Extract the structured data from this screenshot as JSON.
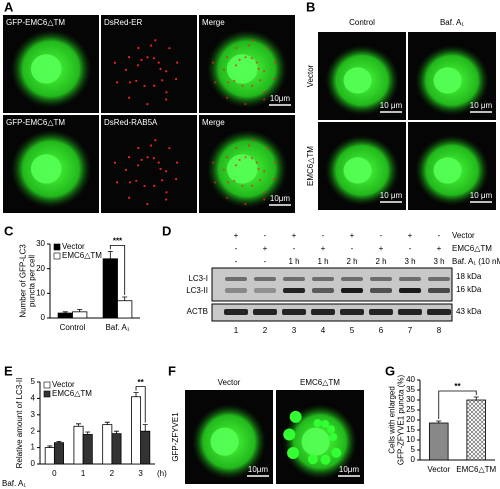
{
  "panels": {
    "A": {
      "label": "A",
      "rows": [
        [
          "GFP-EMC6△TM",
          "DsRed-ER",
          "Merge"
        ],
        [
          "GFP-EMC6△TM",
          "DsRed-RAB5A",
          "Merge"
        ]
      ],
      "scale_bars": [
        "10μm",
        "10μm"
      ]
    },
    "B": {
      "label": "B",
      "columns": [
        "Control",
        "Baf. A₁"
      ],
      "rows": [
        "Vector",
        "EMC6△TM"
      ],
      "scale_bars": [
        "10 μm",
        "10 μm",
        "10 μm",
        "10 μm"
      ]
    },
    "D": {
      "label": "D",
      "conditions": [
        {
          "name": "Vector",
          "marks": [
            "+",
            "-",
            "+",
            "-",
            "+",
            "-",
            "+",
            "-"
          ]
        },
        {
          "name": "EMC6△TM",
          "marks": [
            "-",
            "+",
            "-",
            "+",
            "-",
            "+",
            "-",
            "+"
          ]
        },
        {
          "name": "Baf. A₁ (10 nM)",
          "marks": [
            "-",
            "-",
            "1 h",
            "1 h",
            "2 h",
            "2 h",
            "3 h",
            "3 h"
          ]
        }
      ],
      "bands": [
        "LC3-I",
        "LC3-II",
        "ACTB"
      ],
      "sizes": [
        "18 kDa",
        "16 kDa",
        "43 kDa"
      ],
      "lanes": [
        "1",
        "2",
        "3",
        "4",
        "5",
        "6",
        "7",
        "8"
      ]
    },
    "F": {
      "label": "F",
      "columns": [
        "Vector",
        "EMC6△TM"
      ],
      "ylabel": "GFP-ZFYVE1",
      "scale_bars": [
        "10μm",
        "10μm"
      ]
    }
  },
  "chart_data": [
    {
      "type": "bar",
      "label": "C",
      "ylabel": [
        "Number of GFP-LC3",
        "puncta per cell"
      ],
      "categories": [
        "Control",
        "Baf. A₁"
      ],
      "series": [
        {
          "name": "Vector",
          "color": "#000000",
          "values": [
            2,
            24
          ],
          "errors": [
            0.5,
            3
          ]
        },
        {
          "name": "EMC6△TM",
          "color": "#ffffff",
          "values": [
            2.5,
            7
          ],
          "errors": [
            1,
            1.5
          ]
        }
      ],
      "ylim": [
        0,
        30
      ],
      "yticks": [
        0,
        10,
        20,
        30
      ],
      "annotation": "***",
      "legend": "upper left"
    },
    {
      "type": "bar",
      "label": "E",
      "ylabel": [
        "Relative amount of LC3-II"
      ],
      "categories": [
        "0",
        "1",
        "2",
        "3"
      ],
      "x_unit": "(h)",
      "xlabel": "Baf. A₁",
      "series": [
        {
          "name": "Vector",
          "color": "#ffffff",
          "values": [
            1.0,
            2.3,
            2.4,
            4.1
          ],
          "errors": [
            0.1,
            0.15,
            0.15,
            0.25
          ]
        },
        {
          "name": "EMC6△TM",
          "color": "#333333",
          "values": [
            1.3,
            1.8,
            1.85,
            2.0
          ],
          "errors": [
            0.08,
            0.15,
            0.15,
            0.4
          ]
        }
      ],
      "ylim": [
        0,
        5
      ],
      "yticks": [
        0,
        1,
        2,
        3,
        4,
        5
      ],
      "annotation": "**",
      "legend": "upper left"
    },
    {
      "type": "bar",
      "label": "G",
      "ylabel": [
        "Cells with enlarged",
        "GFP-ZFYVE1 puncta (%)"
      ],
      "categories": [
        "Vector",
        "EMC6△TM"
      ],
      "series": [
        {
          "colors": [
            "#888888",
            "#d0d0d0"
          ],
          "values": [
            18.5,
            30
          ],
          "errors": [
            1,
            1.5
          ]
        }
      ],
      "ylim": [
        0,
        40
      ],
      "yticks": [
        0,
        5,
        10,
        15,
        20,
        25,
        30,
        35,
        40
      ],
      "annotation": "**"
    }
  ]
}
